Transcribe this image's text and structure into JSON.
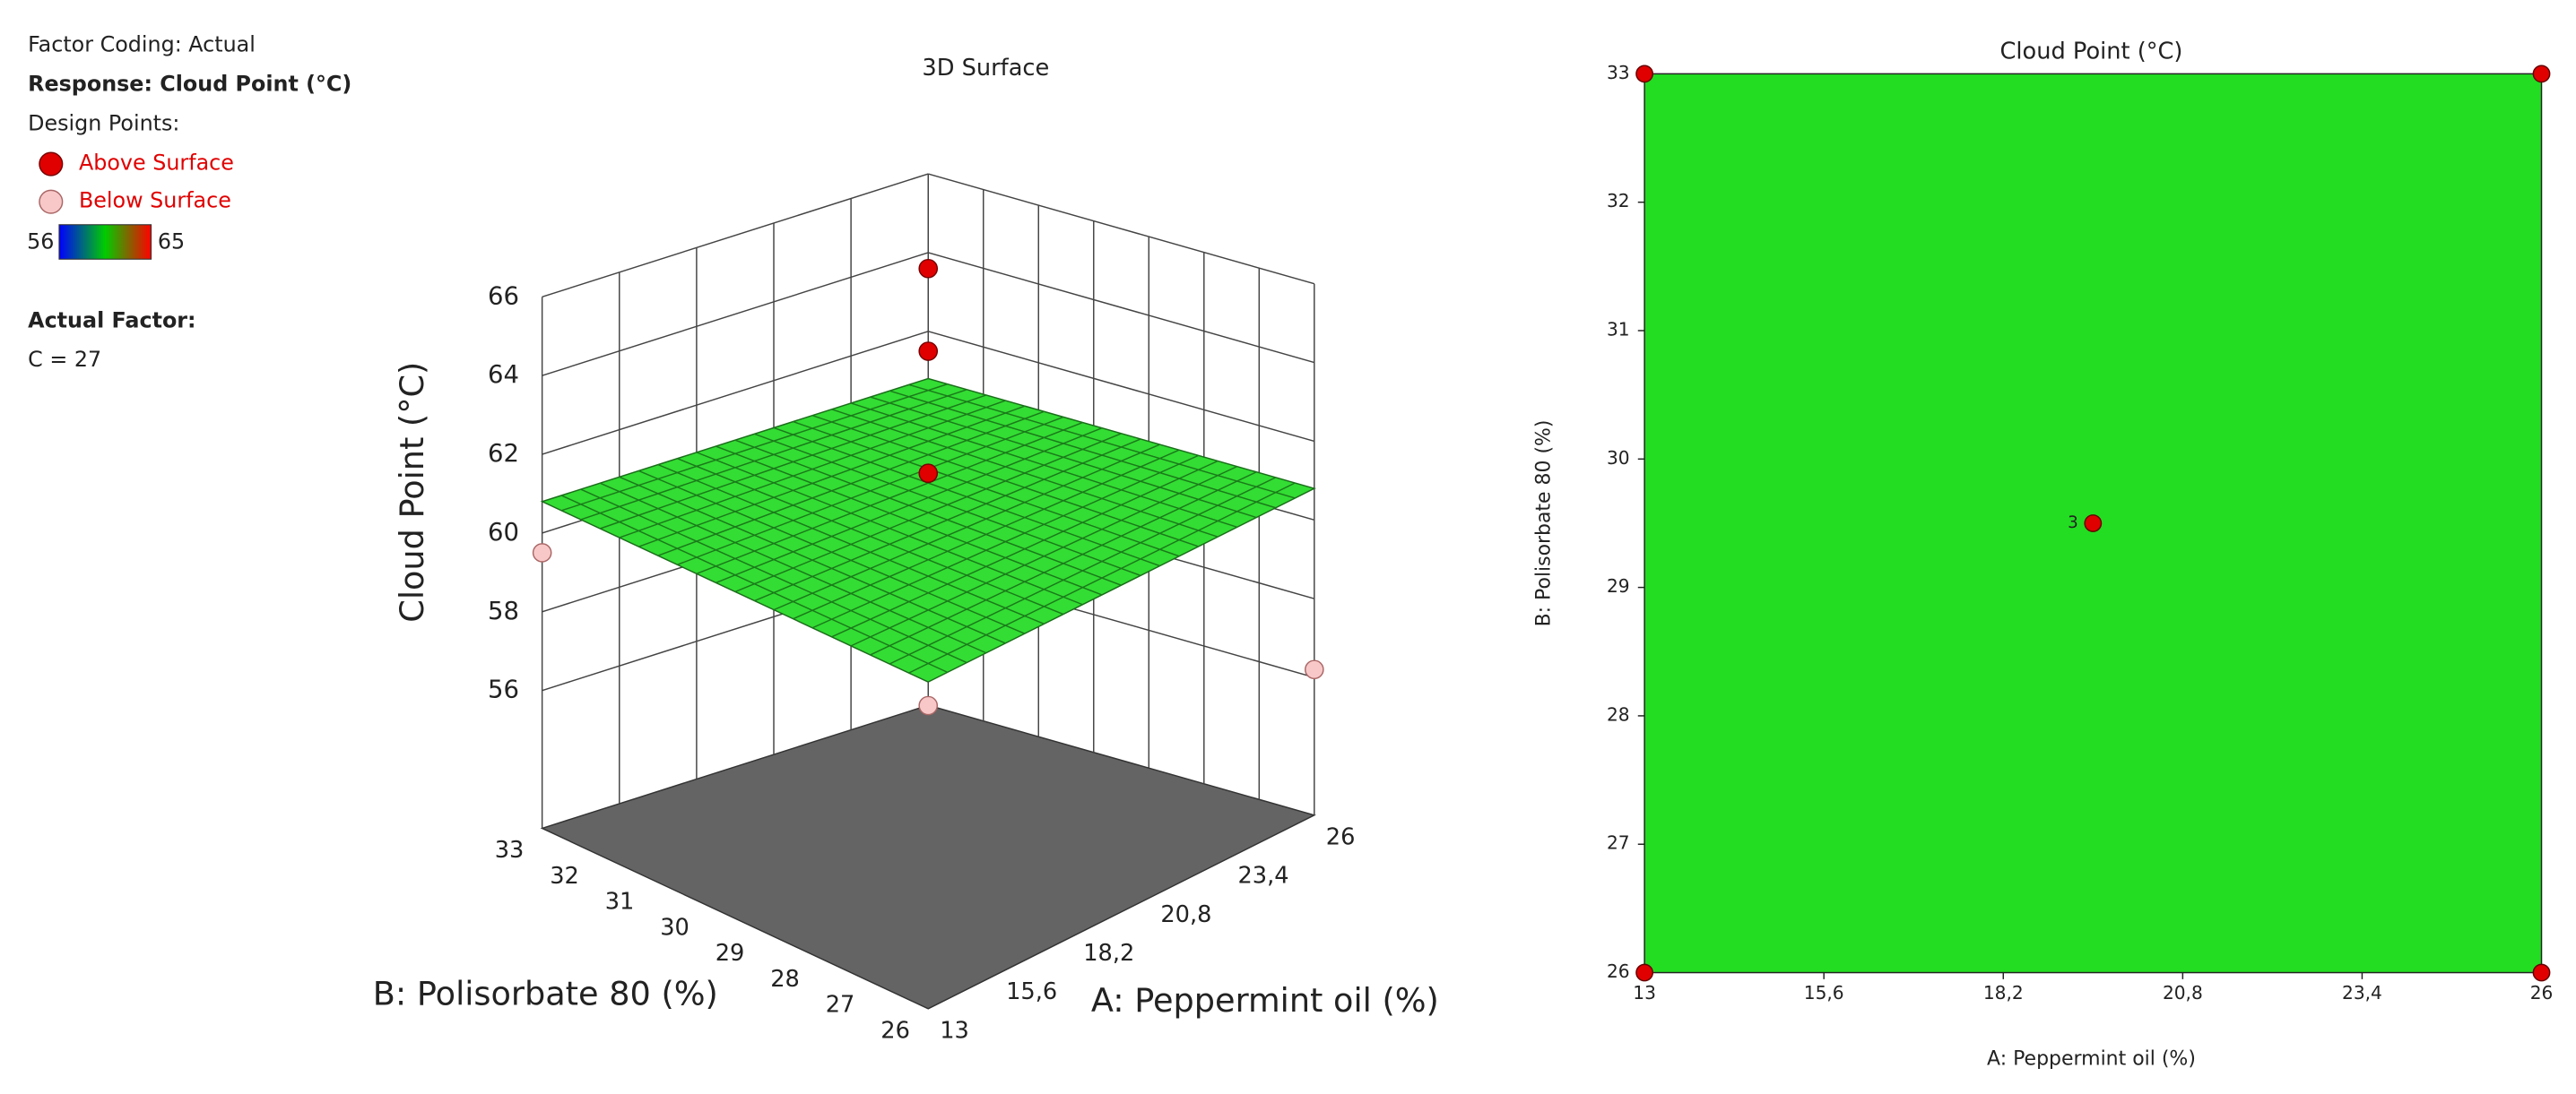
{
  "legend_panel": {
    "factor_coding": "Factor Coding: Actual",
    "response": "Response: Cloud Point (°C)",
    "design_points": "Design Points:",
    "colorbar": {
      "min": 56,
      "max": 65,
      "colors": [
        "#0000ff",
        "#00cc00",
        "#ff0000"
      ]
    },
    "actual_factor": "Actual Factor:",
    "factor_value": "C = 27"
  },
  "chart_data": [
    {
      "type": "surface3d",
      "title": "3D Surface",
      "xlabel": "A: Peppermint oil (%)",
      "ylabel": "B: Polisorbate 80 (%)",
      "zlabel": "Cloud Point (°C)",
      "xlim": [
        13,
        26
      ],
      "ylim": [
        26,
        33
      ],
      "zlim": [
        52.5,
        66
      ],
      "xticks": [
        13,
        {
          "value": 15.6,
          "label": "15,6"
        },
        {
          "value": 18.2,
          "label": "18,2"
        },
        {
          "value": 20.8,
          "label": "20,8"
        },
        {
          "value": 23.4,
          "label": "23,4"
        },
        26
      ],
      "yticks": [
        26,
        27,
        28,
        29,
        30,
        31,
        32,
        33
      ],
      "zticks": [
        56,
        58,
        60,
        62,
        64,
        66
      ],
      "surface_z": 60.8,
      "surface_color": "#33dd33",
      "floor_color": "#646464",
      "grid": true,
      "series": [
        {
          "name": "Above Surface",
          "color": "#e00000",
          "x": [
            19.5,
            19.5,
            19.5
          ],
          "y": [
            29.5,
            29.5,
            29.5
          ],
          "z": [
            61.8,
            64.9,
            67.0
          ]
        },
        {
          "name": "Below Surface",
          "color": "#f8c8c8",
          "x": [
            13,
            26,
            13
          ],
          "y": [
            33,
            26,
            26
          ],
          "z": [
            59.5,
            56.2,
            60.2
          ]
        }
      ]
    },
    {
      "type": "contour",
      "title": "Cloud Point (°C)",
      "xlabel": "A: Peppermint oil (%)",
      "ylabel": "B: Polisorbate 80 (%)",
      "xlim": [
        13,
        26
      ],
      "ylim": [
        26,
        33
      ],
      "xticks": [
        13,
        {
          "value": 15.6,
          "label": "15,6"
        },
        {
          "value": 18.2,
          "label": "18,2"
        },
        {
          "value": 20.8,
          "label": "20,8"
        },
        {
          "value": 23.4,
          "label": "23,4"
        },
        26
      ],
      "yticks": [
        26,
        27,
        28,
        29,
        30,
        31,
        32,
        33
      ],
      "fill_color": "#22dd22",
      "points": {
        "color": "#e00000",
        "x": [
          13,
          13,
          26,
          26,
          19.5
        ],
        "y": [
          26,
          33,
          26,
          33,
          29.5
        ]
      },
      "annotations": [
        {
          "x": 19.5,
          "y": 29.5,
          "text": "3"
        }
      ]
    }
  ]
}
